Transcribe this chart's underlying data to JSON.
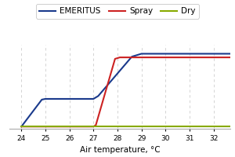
{
  "title": "",
  "xlabel": "Air temperature, °C",
  "xlim": [
    23.5,
    32.7
  ],
  "ylim": [
    -0.03,
    1.12
  ],
  "xticks": [
    24,
    25,
    26,
    27,
    28,
    29,
    30,
    31,
    32
  ],
  "background_color": "#ffffff",
  "grid_color": "#cccccc",
  "series": [
    {
      "label": "EMERITUS",
      "color": "#1a3a8c",
      "linewidth": 1.5,
      "x": [
        24,
        24.85,
        25.0,
        27.0,
        27.2,
        28.6,
        29.0,
        32.7
      ],
      "y": [
        0.0,
        0.37,
        0.38,
        0.38,
        0.42,
        0.96,
        1.0,
        1.0
      ]
    },
    {
      "label": "Spray",
      "color": "#cc2222",
      "linewidth": 1.5,
      "x": [
        24,
        27.0,
        27.1,
        27.9,
        28.1,
        32.7
      ],
      "y": [
        0.0,
        0.0,
        0.02,
        0.93,
        0.95,
        0.95
      ]
    },
    {
      "label": "Dry",
      "color": "#88aa00",
      "linewidth": 1.5,
      "x": [
        24,
        32.7
      ],
      "y": [
        0.0,
        0.0
      ]
    }
  ],
  "legend": {
    "ncol": 3,
    "fontsize": 7.5,
    "frameon": true,
    "handlelength": 2.0,
    "handletextpad": 0.5,
    "columnspacing": 1.0
  },
  "xlabel_fontsize": 7.5,
  "tick_fontsize": 6.5
}
